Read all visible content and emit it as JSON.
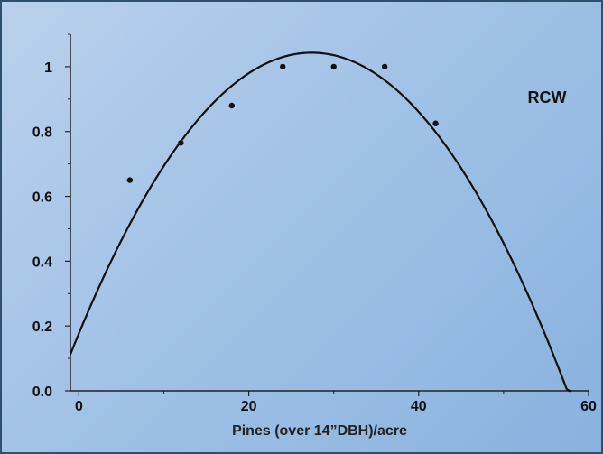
{
  "chart_data": {
    "type": "scatter",
    "title": "",
    "xlabel": "Pines (over 14”DBH)/acre",
    "ylabel": "",
    "series_label": "RCW",
    "xlim": [
      -1,
      60
    ],
    "ylim": [
      0,
      1.1
    ],
    "x_ticks": [
      0,
      20,
      40,
      60
    ],
    "x_tick_labels": [
      "0",
      "20",
      "40",
      "60"
    ],
    "y_ticks": [
      0,
      0.2,
      0.4,
      0.6,
      0.8,
      1
    ],
    "y_tick_labels": [
      "0.0",
      "0.2",
      "0.4",
      "0.6",
      "0.8",
      "1"
    ],
    "grid": false,
    "points": {
      "x": [
        6,
        12,
        18,
        24,
        30,
        36,
        42
      ],
      "y": [
        0.65,
        0.765,
        0.88,
        1.0,
        1.0,
        1.0,
        0.825
      ]
    },
    "fit_curve": {
      "type": "quadratic",
      "x": [
        -1,
        0,
        5,
        10,
        15,
        20,
        25,
        28,
        30,
        35,
        40,
        45,
        50,
        55,
        58
      ],
      "y": [
        0.11,
        0.18,
        0.46,
        0.69,
        0.87,
        0.98,
        1.04,
        1.05,
        1.04,
        0.98,
        0.86,
        0.68,
        0.44,
        0.14,
        0.0
      ]
    },
    "colors": {
      "points": "#111111",
      "curve": "#111111",
      "axes": "#222222"
    }
  }
}
